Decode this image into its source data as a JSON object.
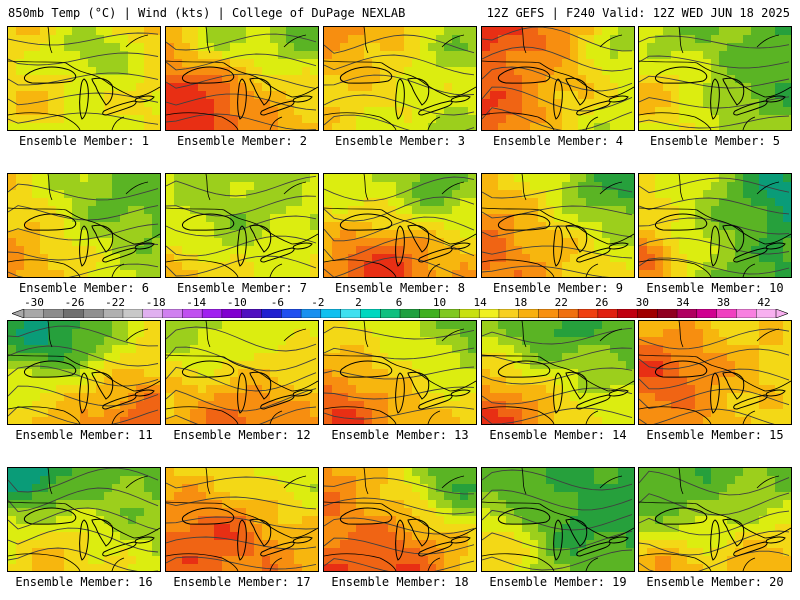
{
  "header": {
    "left": "850mb Temp (°C) | Wind (kts) | College of DuPage NEXLAB",
    "right": "12Z GEFS | F240 Valid: 12Z WED JUN 18 2025"
  },
  "colorbar": {
    "tick_labels": [
      "-30",
      "-26",
      "-22",
      "-18",
      "-14",
      "-10",
      "-6",
      "-2",
      "2",
      "6",
      "10",
      "14",
      "18",
      "22",
      "26",
      "30",
      "34",
      "38",
      "42"
    ],
    "colors": [
      "#a8a8a8",
      "#8c8c8c",
      "#707070",
      "#909090",
      "#b0b0b0",
      "#c8c8c8",
      "#e0b0f0",
      "#d080f0",
      "#c050f0",
      "#a020f0",
      "#8000d0",
      "#5010c0",
      "#2020d0",
      "#2050f0",
      "#1890f0",
      "#10c0f0",
      "#40e0f0",
      "#00d8c0",
      "#10c080",
      "#20a040",
      "#40b020",
      "#80c820",
      "#c8e010",
      "#f0f020",
      "#f8d020",
      "#f8b010",
      "#f89010",
      "#f07010",
      "#f04010",
      "#e02010",
      "#c00010",
      "#a00000",
      "#900020",
      "#b00060",
      "#d00090",
      "#f040c0",
      "#f880e0",
      "#f8b0f0"
    ]
  },
  "map_colors": [
    "#0a9c78",
    "#26a03c",
    "#5ab424",
    "#9ccf1c",
    "#dced10",
    "#f3d816",
    "#f7b60e",
    "#f78e10",
    "#f06414",
    "#e82f14"
  ],
  "panels": [
    {
      "label": "Ensemble Member: 1",
      "base": 5,
      "grad": [
        2,
        -3
      ],
      "spots": [
        [
          0.55,
          0.1,
          3,
          -3
        ],
        [
          0.05,
          0.8,
          3,
          2
        ],
        [
          0.9,
          0.35,
          3,
          -1
        ]
      ]
    },
    {
      "label": "Ensemble Member: 2",
      "base": 6,
      "grad": [
        -2,
        2
      ],
      "spots": [
        [
          0.05,
          0.75,
          3,
          3
        ],
        [
          0.3,
          0.05,
          2,
          -2
        ],
        [
          0.85,
          0.1,
          3,
          -2
        ]
      ]
    },
    {
      "label": "Ensemble Member: 3",
      "base": 5,
      "grad": [
        -1,
        -3
      ],
      "spots": [
        [
          0.85,
          0.08,
          3,
          -3
        ],
        [
          0.05,
          0.9,
          2,
          1
        ]
      ]
    },
    {
      "label": "Ensemble Member: 4",
      "base": 6,
      "grad": [
        -3,
        -3
      ],
      "spots": [
        [
          0.95,
          0.05,
          3,
          -3
        ],
        [
          0.05,
          0.85,
          3,
          2
        ]
      ]
    },
    {
      "label": "Ensemble Member: 5",
      "base": 3,
      "grad": [
        -1,
        1
      ],
      "spots": [
        [
          0.05,
          0.6,
          3,
          2
        ],
        [
          0.9,
          0.5,
          3,
          -1
        ]
      ]
    },
    {
      "label": "Ensemble Member: 6",
      "base": 4,
      "grad": [
        -3,
        1
      ],
      "spots": [
        [
          0.1,
          0.75,
          3,
          1
        ],
        [
          0.6,
          0.3,
          3,
          -1
        ]
      ]
    },
    {
      "label": "Ensemble Member: 7",
      "base": 4,
      "grad": [
        0,
        1
      ],
      "spots": [
        [
          0.05,
          0.95,
          2,
          2
        ],
        [
          0.45,
          0.4,
          3,
          -1
        ]
      ]
    },
    {
      "label": "Ensemble Member: 8",
      "base": 5,
      "grad": [
        0,
        2
      ],
      "spots": [
        [
          0.35,
          0.85,
          3,
          3
        ],
        [
          0.75,
          0.1,
          3,
          -2
        ]
      ]
    },
    {
      "label": "Ensemble Member: 9",
      "base": 5,
      "grad": [
        -3,
        2
      ],
      "spots": [
        [
          0.05,
          0.6,
          3,
          1
        ],
        [
          0.85,
          0.1,
          3,
          -2
        ]
      ]
    },
    {
      "label": "Ensemble Member: 10",
      "base": 3,
      "grad": [
        -3,
        -1
      ],
      "spots": [
        [
          0.02,
          0.8,
          2,
          4
        ],
        [
          0.9,
          0.1,
          3,
          -2
        ]
      ]
    },
    {
      "label": "Ensemble Member: 11",
      "base": 5,
      "grad": [
        2,
        3
      ],
      "spots": [
        [
          0.3,
          0.15,
          3,
          -3
        ],
        [
          0.85,
          0.85,
          3,
          1
        ]
      ]
    },
    {
      "label": "Ensemble Member: 12",
      "base": 5,
      "grad": [
        0,
        2
      ],
      "spots": [
        [
          0.5,
          0.9,
          3,
          2
        ],
        [
          0.1,
          0.1,
          3,
          -1
        ]
      ]
    },
    {
      "label": "Ensemble Member: 13",
      "base": 5,
      "grad": [
        -2,
        2
      ],
      "spots": [
        [
          0.05,
          0.85,
          3,
          2
        ],
        [
          0.9,
          0.1,
          3,
          -1
        ]
      ]
    },
    {
      "label": "Ensemble Member: 14",
      "base": 4,
      "grad": [
        -2,
        2
      ],
      "spots": [
        [
          0.05,
          0.9,
          3,
          3
        ],
        [
          0.4,
          0.05,
          3,
          -2
        ]
      ]
    },
    {
      "label": "Ensemble Member: 15",
      "base": 6,
      "grad": [
        -1,
        1
      ],
      "spots": [
        [
          0.1,
          0.45,
          3,
          2
        ],
        [
          0.9,
          0.9,
          3,
          -1
        ]
      ]
    },
    {
      "label": "Ensemble Member: 16",
      "base": 3,
      "grad": [
        0,
        2
      ],
      "spots": [
        [
          0.05,
          0.05,
          2,
          -3
        ],
        [
          0.3,
          0.8,
          3,
          2
        ]
      ]
    },
    {
      "label": "Ensemble Member: 17",
      "base": 6,
      "grad": [
        -1,
        2
      ],
      "spots": [
        [
          0.3,
          0.6,
          3,
          2
        ],
        [
          0.85,
          0.1,
          3,
          -1
        ]
      ]
    },
    {
      "label": "Ensemble Member: 18",
      "base": 6,
      "grad": [
        -3,
        1
      ],
      "spots": [
        [
          0.5,
          0.85,
          3,
          2
        ],
        [
          0.85,
          0.1,
          3,
          -3
        ]
      ]
    },
    {
      "label": "Ensemble Member: 19",
      "base": 2,
      "grad": [
        -1,
        1
      ],
      "spots": [
        [
          0.05,
          0.75,
          3,
          3
        ],
        [
          0.5,
          0.6,
          3,
          -1
        ]
      ]
    },
    {
      "label": "Ensemble Member: 20",
      "base": 3,
      "grad": [
        1,
        2
      ],
      "spots": [
        [
          0.1,
          0.95,
          3,
          3
        ],
        [
          0.85,
          0.85,
          3,
          2
        ]
      ]
    }
  ]
}
